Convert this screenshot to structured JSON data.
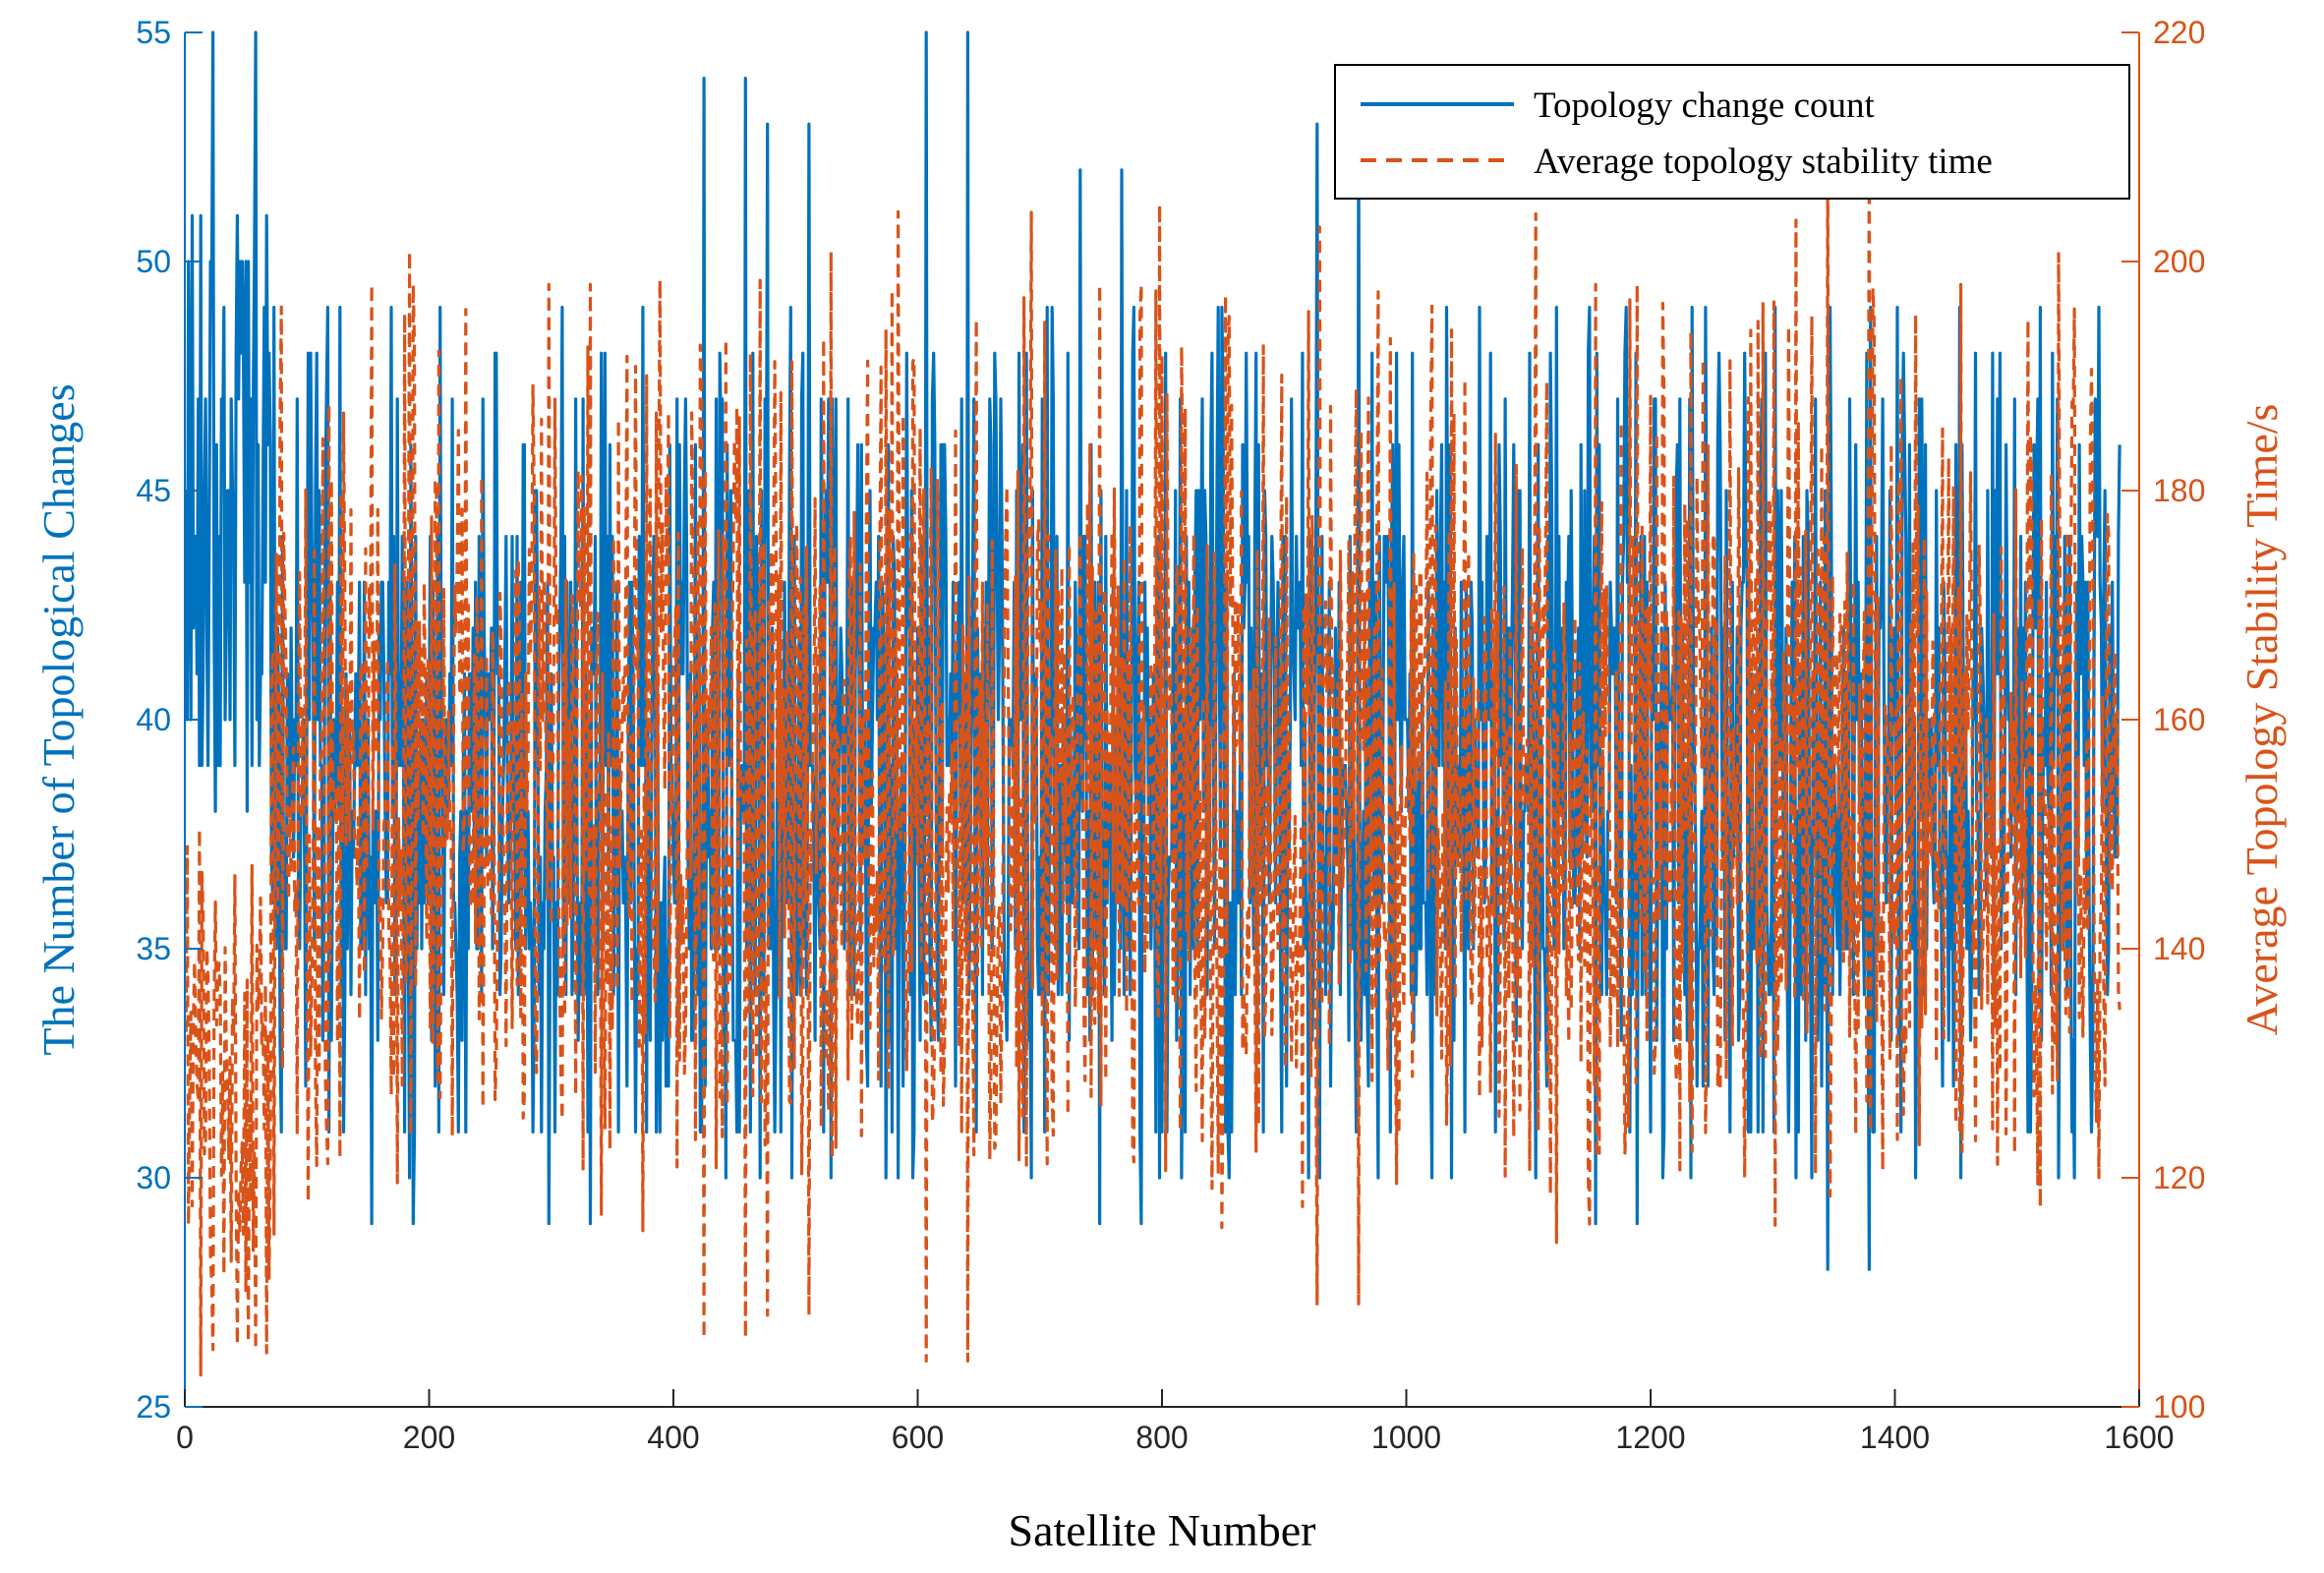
{
  "chart_data": {
    "type": "line",
    "title": "",
    "xlabel": "Satellite Number",
    "ylabel_left": "The Number of Topological Changes",
    "ylabel_right": "Average Topology Stability Time/s",
    "xlim": [
      0,
      1600
    ],
    "ylim_left": [
      25,
      55
    ],
    "ylim_right": [
      100,
      220
    ],
    "xticks": [
      "0",
      "200",
      "400",
      "600",
      "800",
      "1000",
      "1200",
      "1400",
      "1600"
    ],
    "yticks_left": [
      "25",
      "30",
      "35",
      "40",
      "45",
      "50",
      "55"
    ],
    "yticks_right": [
      "100",
      "120",
      "140",
      "160",
      "180",
      "200",
      "220"
    ],
    "grid": false,
    "legend_position": "top-right",
    "n_points": 1584,
    "colors": {
      "series_left": "#0072BD",
      "series_right": "#D95319",
      "axis_left": "#0072BD",
      "axis_right": "#D95319"
    },
    "series": [
      {
        "name": "Topology change count",
        "axis": "left",
        "style": "solid",
        "typical_range": [
          33,
          44
        ],
        "peaks": [
          {
            "x": 22,
            "y": 55
          },
          {
            "x": 57,
            "y": 55
          },
          {
            "x": 424,
            "y": 54
          },
          {
            "x": 458,
            "y": 54
          },
          {
            "x": 476,
            "y": 53
          },
          {
            "x": 510,
            "y": 53
          },
          {
            "x": 606,
            "y": 55
          },
          {
            "x": 640,
            "y": 55
          },
          {
            "x": 926,
            "y": 53
          },
          {
            "x": 960,
            "y": 53
          },
          {
            "x": 732,
            "y": 52
          },
          {
            "x": 766,
            "y": 52
          }
        ],
        "troughs": [
          {
            "x": 152,
            "y": 29
          },
          {
            "x": 186,
            "y": 29
          },
          {
            "x": 297,
            "y": 29
          },
          {
            "x": 331,
            "y": 29
          },
          {
            "x": 748,
            "y": 29
          },
          {
            "x": 782,
            "y": 29
          },
          {
            "x": 1154,
            "y": 29
          },
          {
            "x": 1188,
            "y": 29
          },
          {
            "x": 1344,
            "y": 28
          },
          {
            "x": 1378,
            "y": 28
          }
        ]
      },
      {
        "name": "Average topology stability time",
        "axis": "right",
        "style": "dashed",
        "typical_range": [
          132,
          172
        ],
        "peaks": [
          {
            "x": 152,
            "y": 198
          },
          {
            "x": 186,
            "y": 198
          },
          {
            "x": 297,
            "y": 198
          },
          {
            "x": 331,
            "y": 198
          },
          {
            "x": 748,
            "y": 198
          },
          {
            "x": 782,
            "y": 198
          },
          {
            "x": 1154,
            "y": 198
          },
          {
            "x": 1188,
            "y": 198
          },
          {
            "x": 1344,
            "y": 209
          },
          {
            "x": 1378,
            "y": 209
          }
        ],
        "troughs": [
          {
            "x": 22,
            "y": 105
          },
          {
            "x": 57,
            "y": 105
          },
          {
            "x": 424,
            "y": 106
          },
          {
            "x": 458,
            "y": 106
          },
          {
            "x": 476,
            "y": 108
          },
          {
            "x": 510,
            "y": 108
          },
          {
            "x": 606,
            "y": 104
          },
          {
            "x": 640,
            "y": 104
          },
          {
            "x": 926,
            "y": 109
          },
          {
            "x": 960,
            "y": 109
          }
        ]
      }
    ]
  }
}
